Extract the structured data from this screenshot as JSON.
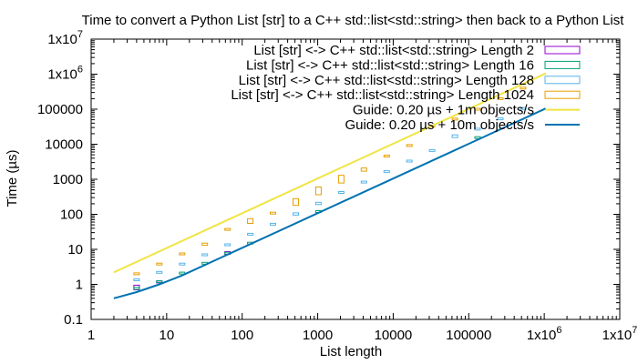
{
  "chart_data": {
    "type": "scatter",
    "title": "Time to convert a Python List [str] to a C++ std::list<std::string> then back to a Python List",
    "xlabel": "List length",
    "ylabel": "Time (µs)",
    "x_scale": "log",
    "y_scale": "log",
    "xlim": [
      1,
      10000000
    ],
    "ylim": [
      0.1,
      10000000
    ],
    "grid": false,
    "legend_position": "top-right",
    "x_ticks": [
      {
        "value": 1,
        "label": "1"
      },
      {
        "value": 10,
        "label": "10"
      },
      {
        "value": 100,
        "label": "100"
      },
      {
        "value": 1000,
        "label": "1000"
      },
      {
        "value": 10000,
        "label": "10000"
      },
      {
        "value": 100000,
        "label": "100000"
      },
      {
        "value": 1000000,
        "label": "1x10⁶"
      },
      {
        "value": 10000000,
        "label": "1x10⁷"
      }
    ],
    "y_ticks": [
      {
        "value": 0.1,
        "label": "0.1"
      },
      {
        "value": 1,
        "label": "1"
      },
      {
        "value": 10,
        "label": "10"
      },
      {
        "value": 100,
        "label": "100"
      },
      {
        "value": 1000,
        "label": "1000"
      },
      {
        "value": 10000,
        "label": "10000"
      },
      {
        "value": 100000,
        "label": "100000"
      },
      {
        "value": 1000000,
        "label": "1x10⁶"
      },
      {
        "value": 10000000,
        "label": "1x10⁷"
      }
    ],
    "series": [
      {
        "name": "List [str] <-> C++ std::list<std::string> Length 2",
        "kind": "boxes",
        "color": "#9400d3",
        "points": [
          {
            "x": 4,
            "low": 0.7,
            "high": 0.95
          },
          {
            "x": 8,
            "low": 1.1,
            "high": 1.25
          },
          {
            "x": 64,
            "low": 7.2,
            "high": 8.6
          }
        ]
      },
      {
        "name": "List [str] <-> C++ std::list<std::string> Length 16",
        "kind": "boxes",
        "color": "#009e73",
        "points": [
          {
            "x": 4,
            "low": 0.72,
            "high": 0.82
          },
          {
            "x": 8,
            "low": 1.1,
            "high": 1.2
          },
          {
            "x": 16,
            "low": 1.9,
            "high": 2.1
          },
          {
            "x": 32,
            "low": 3.6,
            "high": 4.0
          },
          {
            "x": 64,
            "low": 7.0,
            "high": 7.8
          },
          {
            "x": 128,
            "low": 13.5,
            "high": 15.0
          },
          {
            "x": 1024,
            "low": 110,
            "high": 120
          },
          {
            "x": 131072,
            "low": 14500,
            "high": 15500
          }
        ]
      },
      {
        "name": "List [str] <-> C++ std::list<std::string> Length 128",
        "kind": "boxes",
        "color": "#56b4e9",
        "points": [
          {
            "x": 4,
            "low": 1.2,
            "high": 1.35
          },
          {
            "x": 8,
            "low": 2.0,
            "high": 2.2
          },
          {
            "x": 16,
            "low": 3.5,
            "high": 3.8
          },
          {
            "x": 32,
            "low": 6.5,
            "high": 7.0
          },
          {
            "x": 64,
            "low": 12.0,
            "high": 13.5
          },
          {
            "x": 128,
            "low": 24,
            "high": 27
          },
          {
            "x": 256,
            "low": 47,
            "high": 52
          },
          {
            "x": 512,
            "low": 95,
            "high": 110
          },
          {
            "x": 1024,
            "low": 190,
            "high": 220
          },
          {
            "x": 2048,
            "low": 380,
            "high": 420
          },
          {
            "x": 4096,
            "low": 750,
            "high": 830
          },
          {
            "x": 8192,
            "low": 1500,
            "high": 1650
          },
          {
            "x": 16384,
            "low": 3000,
            "high": 3300
          },
          {
            "x": 32768,
            "low": 6000,
            "high": 6600
          },
          {
            "x": 65536,
            "low": 15500,
            "high": 18500
          },
          {
            "x": 131072,
            "low": 24000,
            "high": 27000
          },
          {
            "x": 262144,
            "low": 48000,
            "high": 53000
          },
          {
            "x": 524288,
            "low": 95000,
            "high": 105000
          }
        ]
      },
      {
        "name": "List [str] <-> C++ std::list<std::string> Length 1024",
        "kind": "boxes",
        "color": "#e69f00",
        "points": [
          {
            "x": 4,
            "low": 1.8,
            "high": 2.0
          },
          {
            "x": 8,
            "low": 3.5,
            "high": 3.8
          },
          {
            "x": 16,
            "low": 6.8,
            "high": 7.4
          },
          {
            "x": 32,
            "low": 13,
            "high": 15
          },
          {
            "x": 64,
            "low": 34,
            "high": 37
          },
          {
            "x": 128,
            "low": 55,
            "high": 75
          },
          {
            "x": 256,
            "low": 100,
            "high": 108
          },
          {
            "x": 512,
            "low": 180,
            "high": 280
          },
          {
            "x": 1024,
            "low": 360,
            "high": 600
          },
          {
            "x": 2048,
            "low": 780,
            "high": 1300
          },
          {
            "x": 4096,
            "low": 1700,
            "high": 2100
          },
          {
            "x": 8192,
            "low": 4200,
            "high": 4600
          },
          {
            "x": 16384,
            "low": 8500,
            "high": 9200
          },
          {
            "x": 32768,
            "low": 30000,
            "high": 33000
          },
          {
            "x": 65536,
            "low": 48000,
            "high": 52000
          },
          {
            "x": 131072,
            "low": 92000,
            "high": 100000
          },
          {
            "x": 262144,
            "low": 185000,
            "high": 200000
          },
          {
            "x": 524288,
            "low": 370000,
            "high": 400000
          }
        ]
      },
      {
        "name": "Guide: 0.20 µs + 1m objects/s",
        "kind": "line",
        "color": "#f0e442",
        "x": [
          2,
          1048576
        ],
        "y": [
          2.2,
          1048576
        ]
      },
      {
        "name": "Guide: 0.20 µs + 10m objects/s",
        "kind": "line",
        "color": "#0072b2",
        "x": [
          2,
          4,
          8,
          16,
          1048576
        ],
        "y": [
          0.4,
          0.6,
          1.0,
          1.8,
          104858
        ]
      }
    ]
  }
}
